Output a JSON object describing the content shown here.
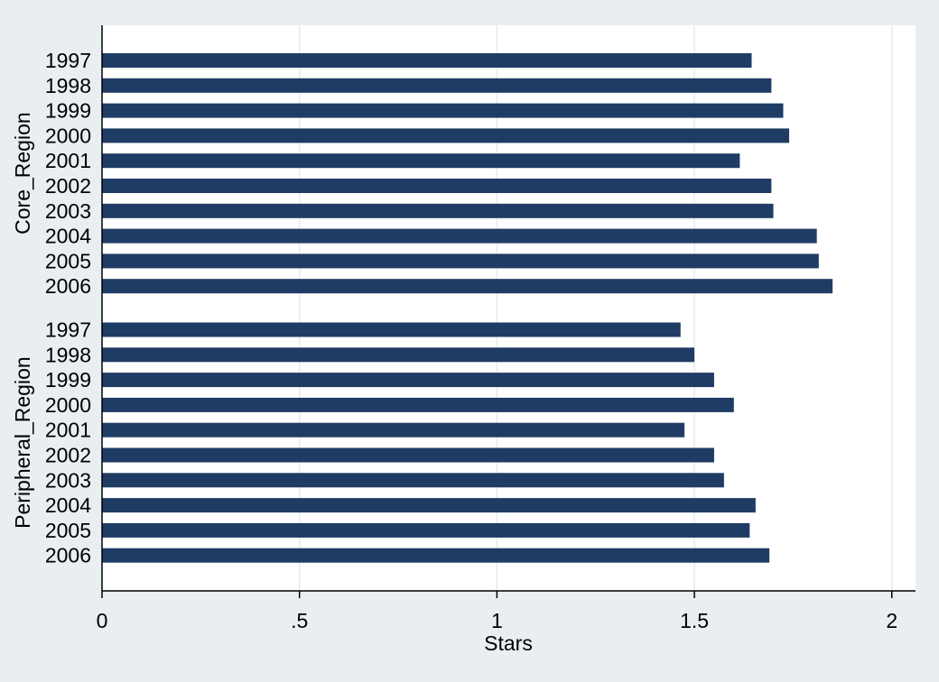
{
  "chart_data": {
    "type": "bar",
    "orientation": "horizontal",
    "xlabel": "Stars",
    "xlim": [
      0,
      2.06
    ],
    "xticks": [
      0,
      0.5,
      1,
      1.5,
      2
    ],
    "xtick_labels": [
      "0",
      ".5",
      "1",
      "1.5",
      "2"
    ],
    "grid": true,
    "bar_color": "#1f3c64",
    "groups": [
      {
        "name": "Core_Region",
        "categories": [
          "1997",
          "1998",
          "1999",
          "2000",
          "2001",
          "2002",
          "2003",
          "2004",
          "2005",
          "2006"
        ],
        "values": [
          1.645,
          1.695,
          1.725,
          1.74,
          1.615,
          1.695,
          1.7,
          1.81,
          1.815,
          1.85
        ]
      },
      {
        "name": "Peripheral_Region",
        "categories": [
          "1997",
          "1998",
          "1999",
          "2000",
          "2001",
          "2002",
          "2003",
          "2004",
          "2005",
          "2006"
        ],
        "values": [
          1.465,
          1.5,
          1.55,
          1.6,
          1.475,
          1.55,
          1.575,
          1.655,
          1.64,
          1.69
        ]
      }
    ]
  }
}
